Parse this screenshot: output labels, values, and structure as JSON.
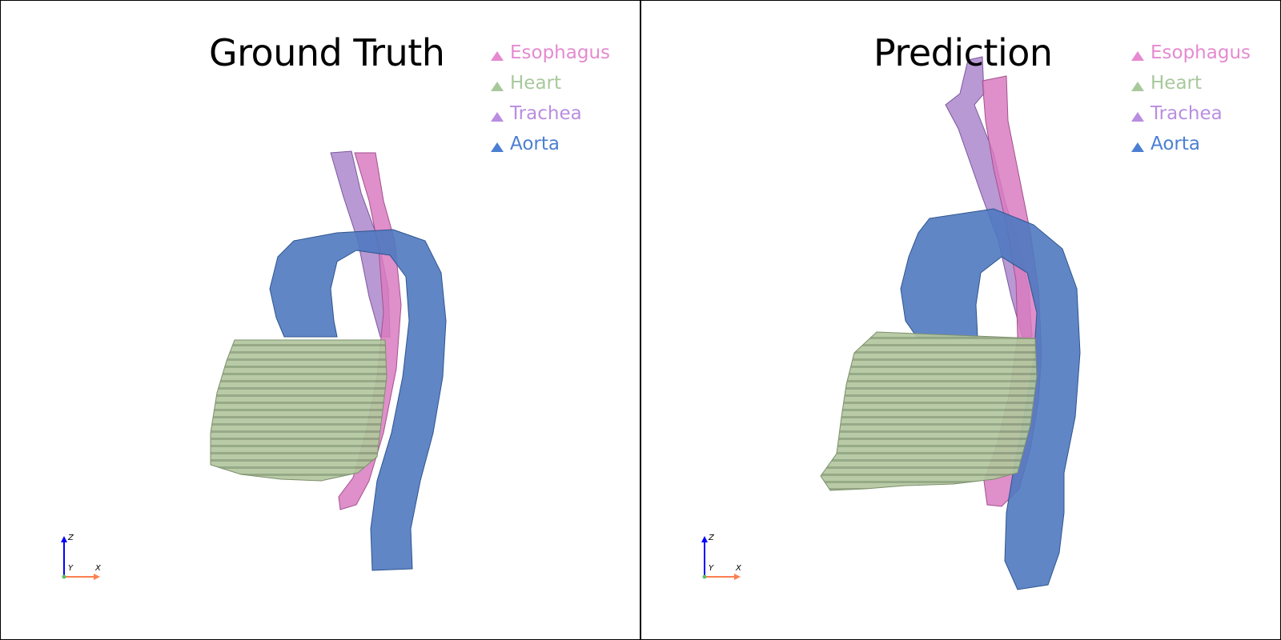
{
  "panels": [
    {
      "title": "Ground Truth",
      "legend": [
        {
          "label": "Esophagus",
          "color": "#e58ad0"
        },
        {
          "label": "Heart",
          "color": "#a8c89c"
        },
        {
          "label": "Trachea",
          "color": "#b98ee0"
        },
        {
          "label": "Aorta",
          "color": "#4c7fd2"
        }
      ],
      "axes": {
        "z": "Z",
        "y": "Y",
        "x": "X"
      }
    },
    {
      "title": "Prediction",
      "legend": [
        {
          "label": "Esophagus",
          "color": "#e58ad0"
        },
        {
          "label": "Heart",
          "color": "#a8c89c"
        },
        {
          "label": "Trachea",
          "color": "#b98ee0"
        },
        {
          "label": "Aorta",
          "color": "#4c7fd2"
        }
      ],
      "axes": {
        "z": "Z",
        "y": "Y",
        "x": "X"
      }
    }
  ],
  "colors": {
    "esophagus": "#d97bbf",
    "heart": "#a9bf93",
    "trachea": "#a77fc8",
    "aorta": "#4f79c0",
    "axis_z": "#0000ff",
    "axis_x": "#ff7f50"
  }
}
